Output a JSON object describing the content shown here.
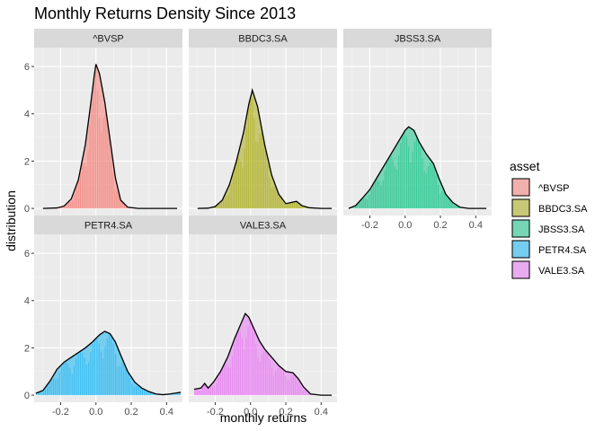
{
  "chart_data": {
    "type": "area",
    "title": "Monthly Returns Density Since 2013",
    "xlabel": "monthly returns",
    "ylabel": "distribution",
    "xlim": [
      -0.35,
      0.49
    ],
    "ylim": [
      -0.3,
      6.8
    ],
    "x_ticks": [
      -0.2,
      0.0,
      0.2,
      0.4
    ],
    "x_tick_labels": [
      "-0.2",
      "0.0",
      "0.2",
      "0.4"
    ],
    "y_ticks": [
      0,
      2,
      4,
      6
    ],
    "y_tick_labels": [
      "0",
      "2",
      "4",
      "6"
    ],
    "grid": true,
    "legend_title": "asset",
    "legend_position": "right",
    "series": [
      {
        "name": "^BVSP",
        "color": "#F8766D",
        "density": [
          [
            -0.3,
            0.0
          ],
          [
            -0.22,
            0.02
          ],
          [
            -0.18,
            0.1
          ],
          [
            -0.14,
            0.4
          ],
          [
            -0.1,
            1.2
          ],
          [
            -0.06,
            2.7
          ],
          [
            -0.03,
            4.4
          ],
          [
            -0.01,
            5.6
          ],
          [
            0.0,
            6.1
          ],
          [
            0.02,
            5.7
          ],
          [
            0.05,
            4.5
          ],
          [
            0.08,
            2.9
          ],
          [
            0.11,
            1.3
          ],
          [
            0.14,
            0.35
          ],
          [
            0.18,
            0.05
          ],
          [
            0.24,
            0.0
          ],
          [
            0.33,
            0.0
          ],
          [
            0.46,
            0.0
          ]
        ]
      },
      {
        "name": "BBDC3.SA",
        "color": "#A3A500",
        "density": [
          [
            -0.3,
            0.0
          ],
          [
            -0.24,
            0.01
          ],
          [
            -0.2,
            0.08
          ],
          [
            -0.16,
            0.35
          ],
          [
            -0.12,
            1.0
          ],
          [
            -0.08,
            2.0
          ],
          [
            -0.04,
            3.2
          ],
          [
            -0.01,
            4.4
          ],
          [
            0.01,
            5.0
          ],
          [
            0.04,
            4.3
          ],
          [
            0.08,
            2.7
          ],
          [
            0.12,
            1.4
          ],
          [
            0.16,
            0.6
          ],
          [
            0.2,
            0.2
          ],
          [
            0.23,
            0.25
          ],
          [
            0.26,
            0.3
          ],
          [
            0.29,
            0.12
          ],
          [
            0.33,
            0.03
          ],
          [
            0.4,
            0.0
          ],
          [
            0.46,
            0.0
          ]
        ]
      },
      {
        "name": "JBSS3.SA",
        "color": "#00BF7D",
        "density": [
          [
            -0.32,
            0.0
          ],
          [
            -0.28,
            0.12
          ],
          [
            -0.24,
            0.45
          ],
          [
            -0.2,
            0.8
          ],
          [
            -0.16,
            1.3
          ],
          [
            -0.12,
            1.8
          ],
          [
            -0.08,
            2.3
          ],
          [
            -0.04,
            2.8
          ],
          [
            0.0,
            3.3
          ],
          [
            0.02,
            3.45
          ],
          [
            0.05,
            3.3
          ],
          [
            0.08,
            2.8
          ],
          [
            0.12,
            2.3
          ],
          [
            0.16,
            1.9
          ],
          [
            0.19,
            1.3
          ],
          [
            0.23,
            0.6
          ],
          [
            0.27,
            0.25
          ],
          [
            0.31,
            0.05
          ],
          [
            0.36,
            0.0
          ],
          [
            0.46,
            0.0
          ]
        ]
      },
      {
        "name": "PETR4.SA",
        "color": "#00B0F6",
        "density": [
          [
            -0.34,
            0.08
          ],
          [
            -0.3,
            0.2
          ],
          [
            -0.26,
            0.6
          ],
          [
            -0.22,
            1.1
          ],
          [
            -0.18,
            1.4
          ],
          [
            -0.14,
            1.6
          ],
          [
            -0.1,
            1.8
          ],
          [
            -0.06,
            2.0
          ],
          [
            -0.02,
            2.25
          ],
          [
            0.02,
            2.55
          ],
          [
            0.05,
            2.7
          ],
          [
            0.08,
            2.6
          ],
          [
            0.11,
            2.25
          ],
          [
            0.14,
            1.7
          ],
          [
            0.18,
            1.0
          ],
          [
            0.22,
            0.55
          ],
          [
            0.26,
            0.3
          ],
          [
            0.3,
            0.15
          ],
          [
            0.34,
            0.05
          ],
          [
            0.38,
            0.02
          ],
          [
            0.42,
            0.05
          ],
          [
            0.46,
            0.1
          ],
          [
            0.48,
            0.12
          ]
        ]
      },
      {
        "name": "VALE3.SA",
        "color": "#E76BF3",
        "density": [
          [
            -0.32,
            0.25
          ],
          [
            -0.28,
            0.3
          ],
          [
            -0.26,
            0.5
          ],
          [
            -0.24,
            0.3
          ],
          [
            -0.21,
            0.55
          ],
          [
            -0.17,
            1.0
          ],
          [
            -0.13,
            1.6
          ],
          [
            -0.09,
            2.4
          ],
          [
            -0.05,
            3.1
          ],
          [
            -0.03,
            3.45
          ],
          [
            -0.01,
            3.3
          ],
          [
            0.02,
            2.8
          ],
          [
            0.05,
            2.3
          ],
          [
            0.08,
            1.95
          ],
          [
            0.12,
            1.6
          ],
          [
            0.16,
            1.25
          ],
          [
            0.2,
            1.0
          ],
          [
            0.24,
            0.95
          ],
          [
            0.27,
            0.7
          ],
          [
            0.3,
            0.35
          ],
          [
            0.34,
            0.05
          ],
          [
            0.4,
            0.0
          ],
          [
            0.46,
            0.0
          ]
        ]
      }
    ]
  }
}
